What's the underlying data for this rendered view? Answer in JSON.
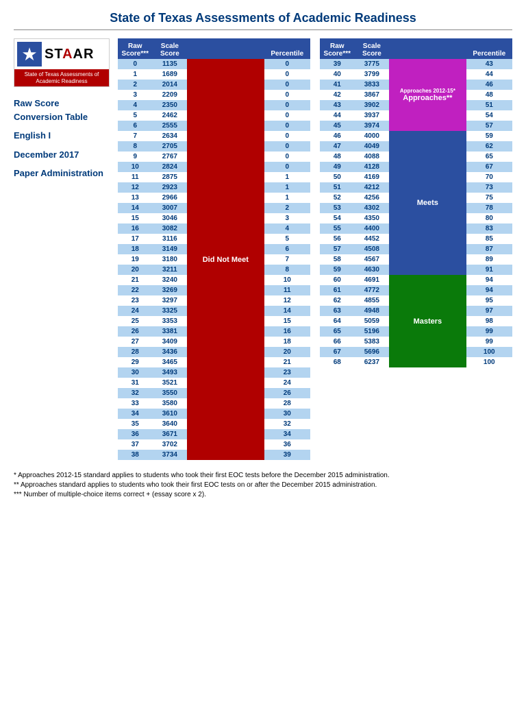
{
  "title": "State of Texas Assessments of Academic Readiness",
  "logo": {
    "brand": "STAAR",
    "subtitle": "State of Texas Assessments of Academic Readiness"
  },
  "sidebar": {
    "line1": "Raw Score Conversion Table",
    "line2": "English I",
    "line3": "December 2017",
    "line4": "Paper Administration"
  },
  "headers": {
    "raw": "Raw Score***",
    "scale": "Scale Score",
    "pct": "Percentile"
  },
  "categories": {
    "dnm": "Did Not Meet",
    "app_small": "Approaches 2012-15*",
    "app": "Approaches**",
    "meets": "Meets",
    "masters": "Masters"
  },
  "colors": {
    "header_bg": "#2b4fa0",
    "stripe": "#b3d4f0",
    "dnm": "#b00000",
    "app": "#c020c0",
    "meets": "#2b4fa0",
    "masters": "#0a7a0a",
    "text": "#003a7a"
  },
  "left": [
    {
      "raw": 0,
      "scale": 1135,
      "pct": 0,
      "cat": "dnm"
    },
    {
      "raw": 1,
      "scale": 1689,
      "pct": 0,
      "cat": "dnm"
    },
    {
      "raw": 2,
      "scale": 2014,
      "pct": 0,
      "cat": "dnm"
    },
    {
      "raw": 3,
      "scale": 2209,
      "pct": 0,
      "cat": "dnm"
    },
    {
      "raw": 4,
      "scale": 2350,
      "pct": 0,
      "cat": "dnm"
    },
    {
      "raw": 5,
      "scale": 2462,
      "pct": 0,
      "cat": "dnm"
    },
    {
      "raw": 6,
      "scale": 2555,
      "pct": 0,
      "cat": "dnm"
    },
    {
      "raw": 7,
      "scale": 2634,
      "pct": 0,
      "cat": "dnm"
    },
    {
      "raw": 8,
      "scale": 2705,
      "pct": 0,
      "cat": "dnm"
    },
    {
      "raw": 9,
      "scale": 2767,
      "pct": 0,
      "cat": "dnm"
    },
    {
      "raw": 10,
      "scale": 2824,
      "pct": 0,
      "cat": "dnm"
    },
    {
      "raw": 11,
      "scale": 2875,
      "pct": 1,
      "cat": "dnm"
    },
    {
      "raw": 12,
      "scale": 2923,
      "pct": 1,
      "cat": "dnm"
    },
    {
      "raw": 13,
      "scale": 2966,
      "pct": 1,
      "cat": "dnm"
    },
    {
      "raw": 14,
      "scale": 3007,
      "pct": 2,
      "cat": "dnm"
    },
    {
      "raw": 15,
      "scale": 3046,
      "pct": 3,
      "cat": "dnm"
    },
    {
      "raw": 16,
      "scale": 3082,
      "pct": 4,
      "cat": "dnm"
    },
    {
      "raw": 17,
      "scale": 3116,
      "pct": 5,
      "cat": "dnm"
    },
    {
      "raw": 18,
      "scale": 3149,
      "pct": 6,
      "cat": "dnm"
    },
    {
      "raw": 19,
      "scale": 3180,
      "pct": 7,
      "cat": "dnm"
    },
    {
      "raw": 20,
      "scale": 3211,
      "pct": 8,
      "cat": "dnm"
    },
    {
      "raw": 21,
      "scale": 3240,
      "pct": 10,
      "cat": "dnm"
    },
    {
      "raw": 22,
      "scale": 3269,
      "pct": 11,
      "cat": "dnm"
    },
    {
      "raw": 23,
      "scale": 3297,
      "pct": 12,
      "cat": "dnm"
    },
    {
      "raw": 24,
      "scale": 3325,
      "pct": 14,
      "cat": "dnm"
    },
    {
      "raw": 25,
      "scale": 3353,
      "pct": 15,
      "cat": "dnm"
    },
    {
      "raw": 26,
      "scale": 3381,
      "pct": 16,
      "cat": "dnm"
    },
    {
      "raw": 27,
      "scale": 3409,
      "pct": 18,
      "cat": "dnm"
    },
    {
      "raw": 28,
      "scale": 3436,
      "pct": 20,
      "cat": "dnm"
    },
    {
      "raw": 29,
      "scale": 3465,
      "pct": 21,
      "cat": "dnm"
    },
    {
      "raw": 30,
      "scale": 3493,
      "pct": 23,
      "cat": "dnm"
    },
    {
      "raw": 31,
      "scale": 3521,
      "pct": 24,
      "cat": "dnm"
    },
    {
      "raw": 32,
      "scale": 3550,
      "pct": 26,
      "cat": "dnm"
    },
    {
      "raw": 33,
      "scale": 3580,
      "pct": 28,
      "cat": "dnm"
    },
    {
      "raw": 34,
      "scale": 3610,
      "pct": 30,
      "cat": "dnm"
    },
    {
      "raw": 35,
      "scale": 3640,
      "pct": 32,
      "cat": "dnm"
    },
    {
      "raw": 36,
      "scale": 3671,
      "pct": 34,
      "cat": "dnm"
    },
    {
      "raw": 37,
      "scale": 3702,
      "pct": 36,
      "cat": "dnm"
    },
    {
      "raw": 38,
      "scale": 3734,
      "pct": 39,
      "cat": "dnm"
    }
  ],
  "right": [
    {
      "raw": 39,
      "scale": 3775,
      "pct": 43,
      "cat": "app"
    },
    {
      "raw": 40,
      "scale": 3799,
      "pct": 44,
      "cat": "app"
    },
    {
      "raw": 41,
      "scale": 3833,
      "pct": 46,
      "cat": "app"
    },
    {
      "raw": 42,
      "scale": 3867,
      "pct": 48,
      "cat": "app"
    },
    {
      "raw": 43,
      "scale": 3902,
      "pct": 51,
      "cat": "app"
    },
    {
      "raw": 44,
      "scale": 3937,
      "pct": 54,
      "cat": "app"
    },
    {
      "raw": 45,
      "scale": 3974,
      "pct": 57,
      "cat": "app"
    },
    {
      "raw": 46,
      "scale": 4000,
      "pct": 59,
      "cat": "meets"
    },
    {
      "raw": 47,
      "scale": 4049,
      "pct": 62,
      "cat": "meets"
    },
    {
      "raw": 48,
      "scale": 4088,
      "pct": 65,
      "cat": "meets"
    },
    {
      "raw": 49,
      "scale": 4128,
      "pct": 67,
      "cat": "meets"
    },
    {
      "raw": 50,
      "scale": 4169,
      "pct": 70,
      "cat": "meets"
    },
    {
      "raw": 51,
      "scale": 4212,
      "pct": 73,
      "cat": "meets"
    },
    {
      "raw": 52,
      "scale": 4256,
      "pct": 75,
      "cat": "meets"
    },
    {
      "raw": 53,
      "scale": 4302,
      "pct": 78,
      "cat": "meets"
    },
    {
      "raw": 54,
      "scale": 4350,
      "pct": 80,
      "cat": "meets"
    },
    {
      "raw": 55,
      "scale": 4400,
      "pct": 83,
      "cat": "meets"
    },
    {
      "raw": 56,
      "scale": 4452,
      "pct": 85,
      "cat": "meets"
    },
    {
      "raw": 57,
      "scale": 4508,
      "pct": 87,
      "cat": "meets"
    },
    {
      "raw": 58,
      "scale": 4567,
      "pct": 89,
      "cat": "meets"
    },
    {
      "raw": 59,
      "scale": 4630,
      "pct": 91,
      "cat": "meets"
    },
    {
      "raw": 60,
      "scale": 4691,
      "pct": 94,
      "cat": "masters"
    },
    {
      "raw": 61,
      "scale": 4772,
      "pct": 94,
      "cat": "masters"
    },
    {
      "raw": 62,
      "scale": 4855,
      "pct": 95,
      "cat": "masters"
    },
    {
      "raw": 63,
      "scale": 4948,
      "pct": 97,
      "cat": "masters"
    },
    {
      "raw": 64,
      "scale": 5059,
      "pct": 98,
      "cat": "masters"
    },
    {
      "raw": 65,
      "scale": 5196,
      "pct": 99,
      "cat": "masters"
    },
    {
      "raw": 66,
      "scale": 5383,
      "pct": 99,
      "cat": "masters"
    },
    {
      "raw": 67,
      "scale": 5696,
      "pct": 100,
      "cat": "masters"
    },
    {
      "raw": 68,
      "scale": 6237,
      "pct": 100,
      "cat": "masters"
    }
  ],
  "footnotes": {
    "f1": "* Approaches 2012-15 standard applies to students who took their first EOC tests before the December 2015 administration.",
    "f2": "** Approaches standard applies to students who took their first EOC tests on or after the December 2015 administration.",
    "f3": "*** Number of multiple-choice items correct + (essay score x 2)."
  }
}
